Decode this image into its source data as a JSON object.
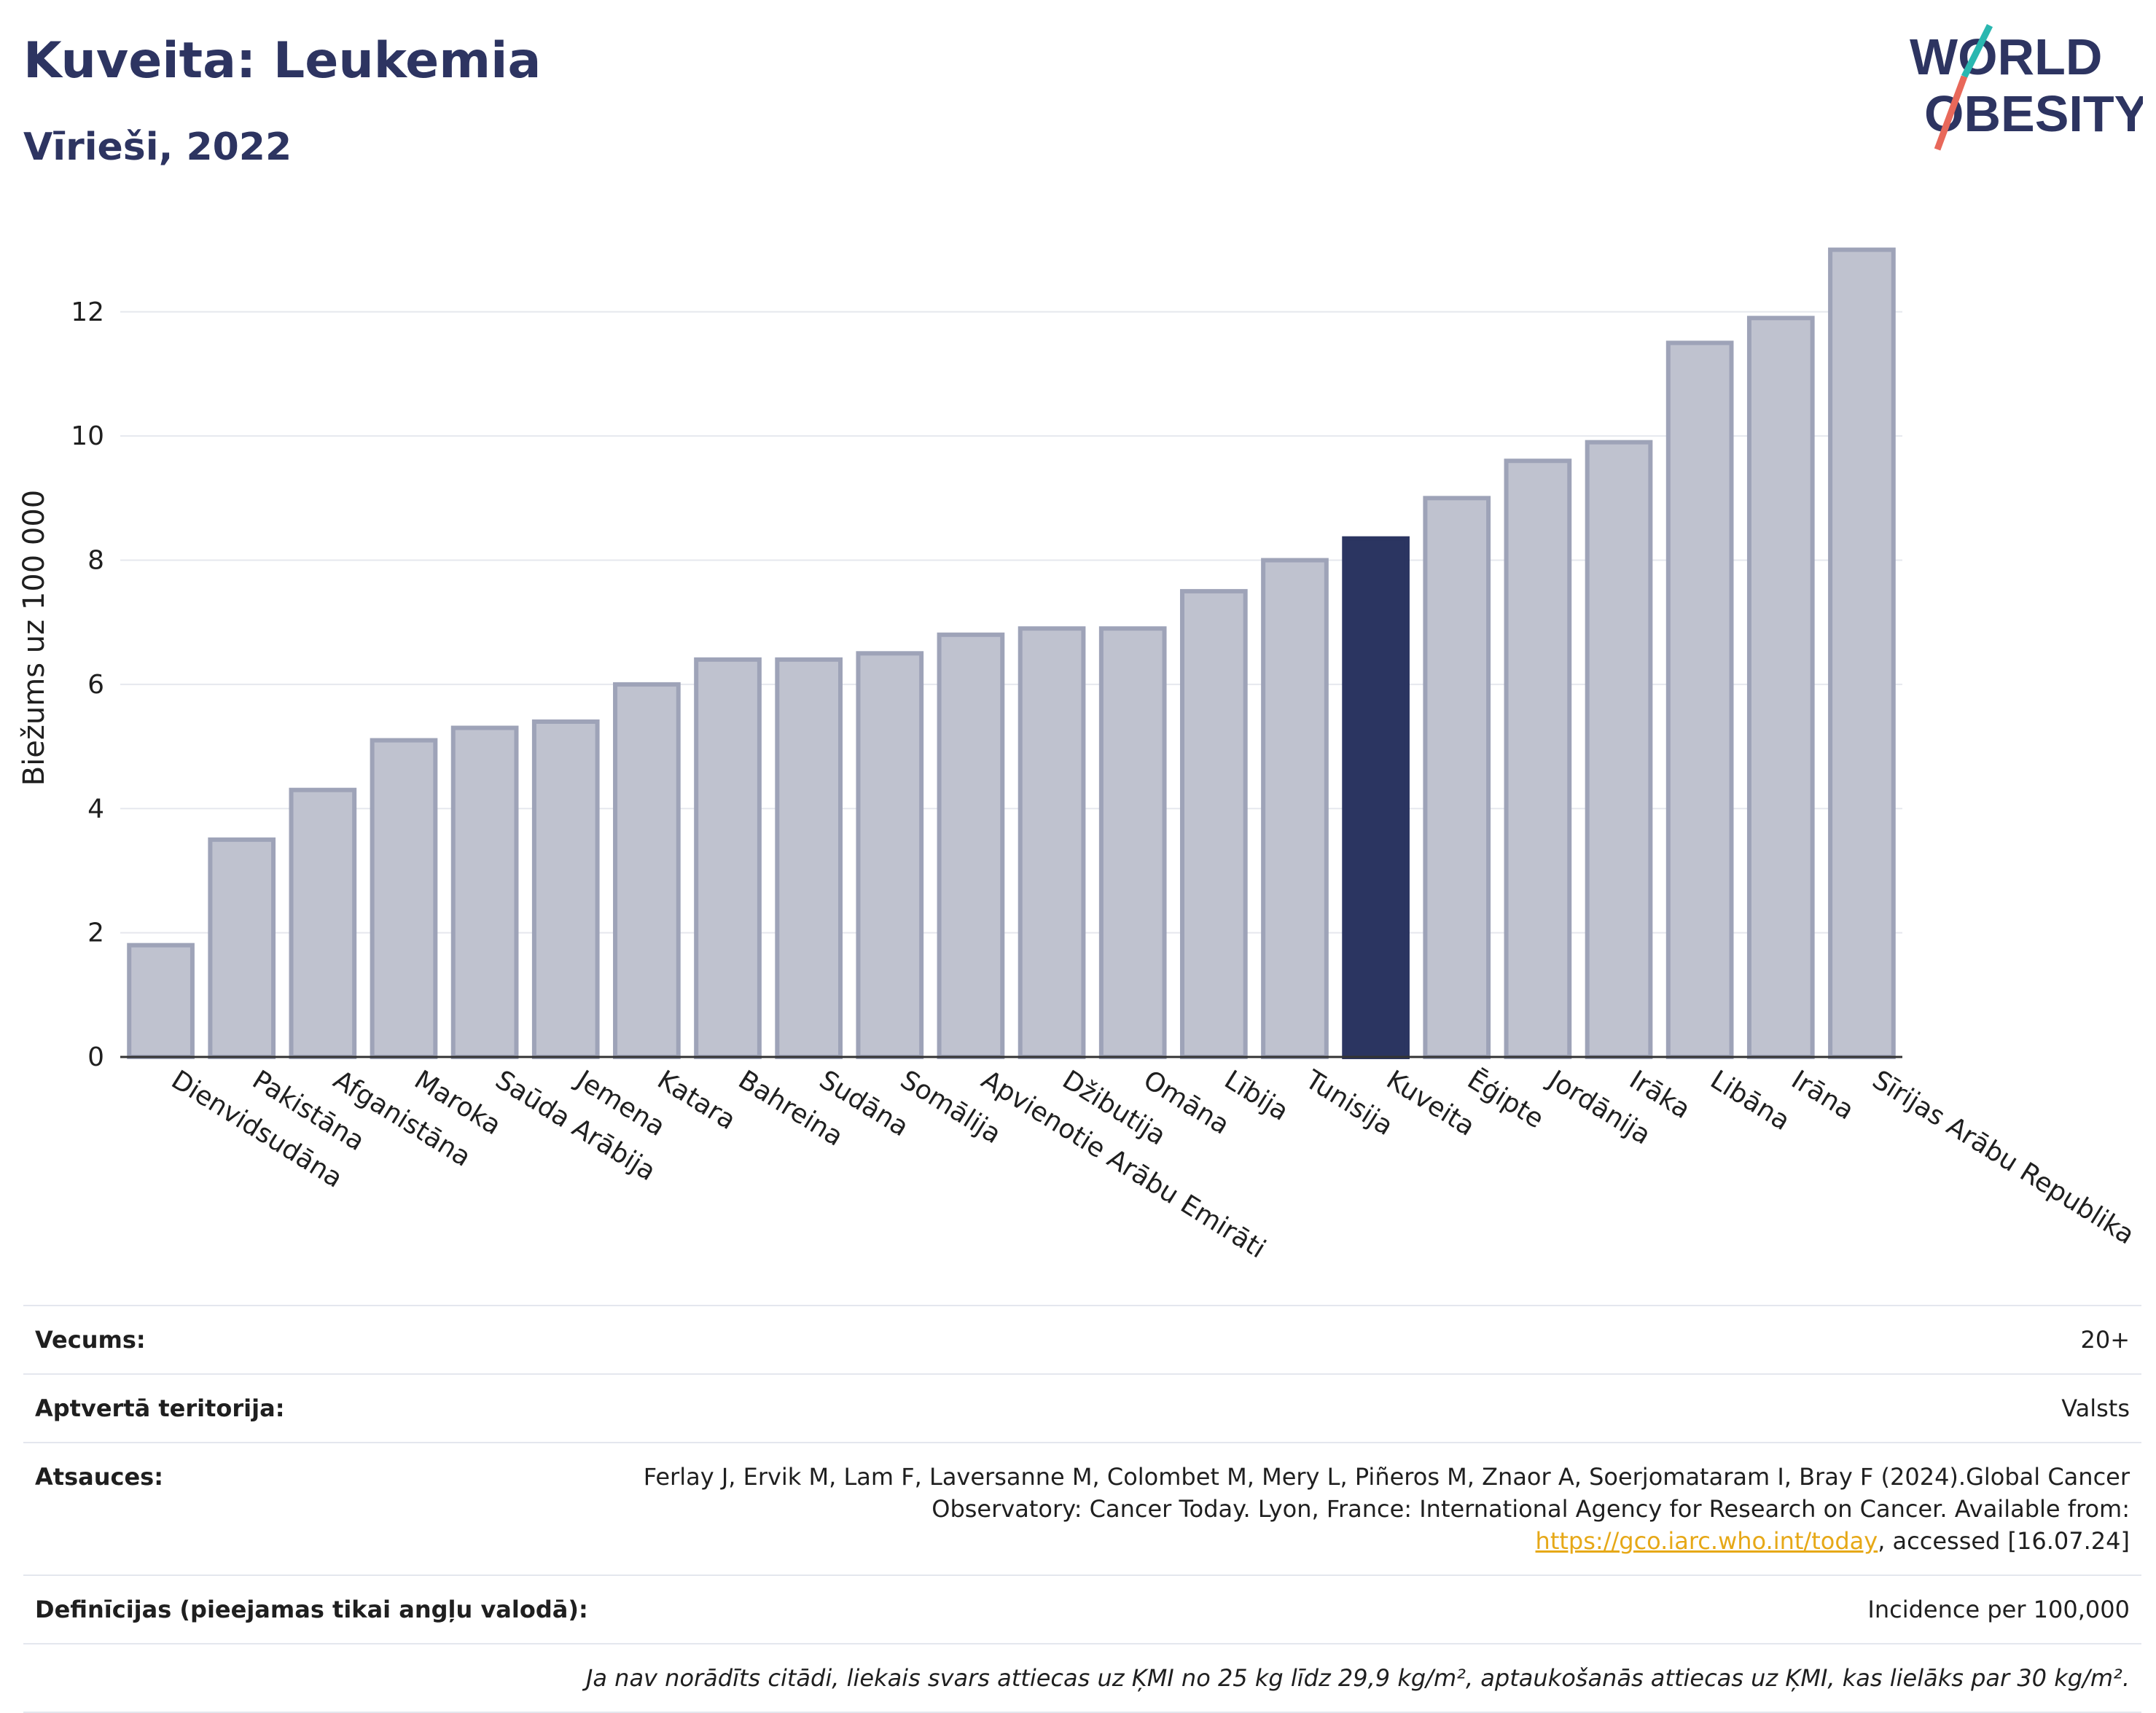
{
  "header": {
    "title": "Kuveita: Leukemia",
    "subtitle": "Vīrieši, 2022",
    "logo_line1": "WORLD",
    "logo_line2": "OBESITY"
  },
  "colors": {
    "bar": "#bfc2cf",
    "bar_border": "#9ea3b8",
    "highlight": "#2b3561",
    "title": "#2d3461",
    "logo_slash_top": "#2ab7b0",
    "logo_slash_bottom": "#e8685a"
  },
  "chart_data": {
    "type": "bar",
    "ylabel": "Biežums uz 100 000",
    "ylim": [
      0,
      13.5
    ],
    "yticks": [
      0,
      2,
      4,
      6,
      8,
      10,
      12
    ],
    "grid": true,
    "highlight": "Kuveita",
    "categories": [
      "Dienvidsudāna",
      "Pakistāna",
      "Afganistāna",
      "Maroka",
      "Saūda Arābija",
      "Jemena",
      "Katara",
      "Bahreina",
      "Sudāna",
      "Somālija",
      "Apvienotie Arābu Emirāti",
      "Džibutija",
      "Omāna",
      "Lībija",
      "Tunisija",
      "Kuveita",
      "Ēģipte",
      "Jordānija",
      "Irāka",
      "Libāna",
      "Irāna",
      "Sīrijas Arābu Republika"
    ],
    "values": [
      1.8,
      3.5,
      4.3,
      5.1,
      5.3,
      5.4,
      6.0,
      6.4,
      6.4,
      6.5,
      6.8,
      6.9,
      6.9,
      7.5,
      8.0,
      8.35,
      9.0,
      9.6,
      9.9,
      11.5,
      11.9,
      13.0
    ]
  },
  "meta": {
    "age_label": "Vecums:",
    "age_value": "20+",
    "territory_label": "Aptvertā teritorija:",
    "territory_value": "Valsts",
    "refs_label": "Atsauces:",
    "refs_text1": "Ferlay J, Ervik M, Lam F, Laversanne M, Colombet M, Mery L, Piñeros M, Znaor A, Soerjomataram I, Bray F (2024).Global Cancer Observatory: Cancer Today. Lyon, France: International Agency for Research on Cancer. Available from: ",
    "refs_link": "https://gco.iarc.who.int/today",
    "refs_text2": ", accessed [16.07.24]",
    "defs_label": "Definīcijas (pieejamas tikai angļu valodā):",
    "defs_value": "Incidence per 100,000",
    "note": "Ja nav norādīts citādi, liekais svars attiecas uz ĶMI no 25 kg līdz 29,9 kg/m², aptaukošanās attiecas uz ĶMI, kas lielāks par 30 kg/m²."
  }
}
